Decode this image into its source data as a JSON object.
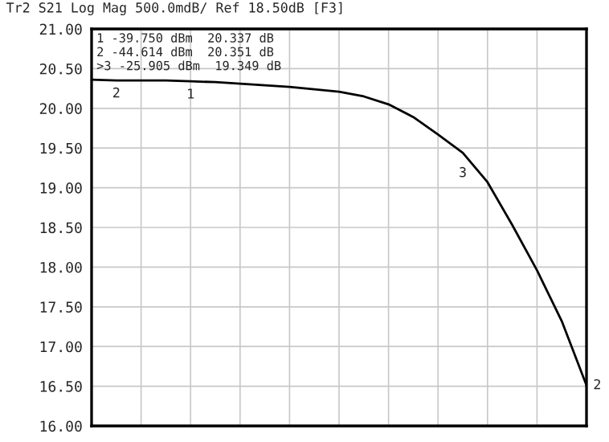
{
  "chart_data": {
    "type": "line",
    "title": "Tr2 S21 Log Mag 500.0mdB/ Ref 18.50dB [F3]",
    "categories": [
      null,
      null,
      null,
      null,
      null,
      null,
      null,
      null,
      null,
      null,
      null,
      null,
      null,
      null,
      null,
      null,
      null,
      null,
      null,
      null,
      null
    ],
    "series": [
      {
        "color": "#000000",
        "values": [
          20.36,
          20.35,
          20.35,
          20.35,
          20.34,
          20.33,
          20.31,
          20.29,
          20.27,
          20.24,
          20.21,
          20.15,
          20.05,
          19.89,
          19.67,
          19.44,
          19.07,
          18.53,
          17.96,
          17.32,
          16.51
        ]
      }
    ],
    "ylim": [
      16,
      21
    ],
    "yticks": [
      {
        "value": 16,
        "label": "16.00"
      },
      {
        "value": 16.5,
        "label": "16.50"
      },
      {
        "value": 17,
        "label": "17.00"
      },
      {
        "value": 17.5,
        "label": "17.50"
      },
      {
        "value": 18,
        "label": "18.00"
      },
      {
        "value": 18.5,
        "label": "18.50"
      },
      {
        "value": 19,
        "label": "19.00"
      },
      {
        "value": 19.5,
        "label": "19.50"
      },
      {
        "value": 20,
        "label": "20.00"
      },
      {
        "value": 20.5,
        "label": "20.50"
      },
      {
        "value": 21,
        "label": "21.00"
      }
    ],
    "tick_labels": "y",
    "grid": true,
    "annotations": [
      "1 -39.750 dBm  20.337 dB",
      "2 -44.614 dBm  20.351 dB",
      ">3 -25.905 dBm  19.349 dB",
      {
        "text": "1",
        "y": 20.337
      },
      {
        "text": "2",
        "y": 20.351
      },
      {
        "text": "3",
        "y": 19.349
      },
      "2"
    ]
  }
}
